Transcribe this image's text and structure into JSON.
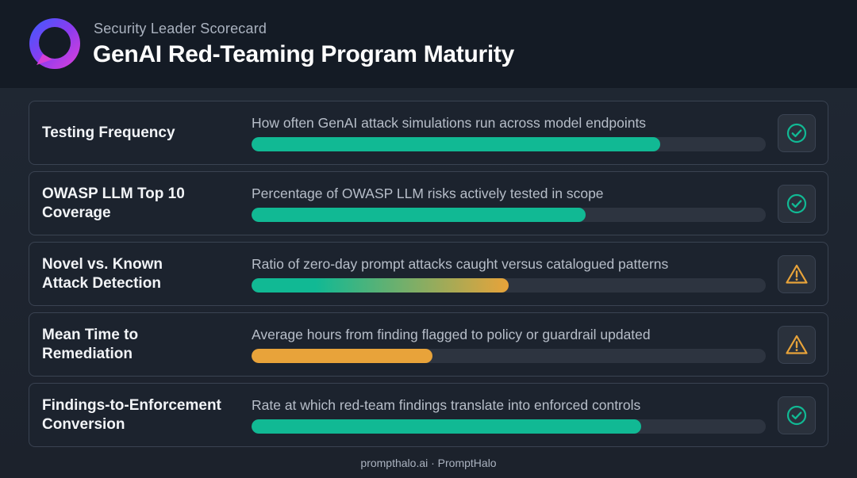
{
  "header": {
    "subtitle": "Security Leader Scorecard",
    "title": "GenAI Red-Teaming Program Maturity",
    "logo_icon": "halo-logo-icon"
  },
  "colors": {
    "teal": "#11b994",
    "amber": "#e8a33a",
    "track": "#2d3440"
  },
  "rows": [
    {
      "label_line1": "Testing Frequency",
      "label_line2": "",
      "description": "How often GenAI attack simulations run across model endpoints",
      "progress": 0.795,
      "bar_style": "teal",
      "status_icon": "check-circle-icon"
    },
    {
      "label_line1": "OWASP LLM Top 10",
      "label_line2": "Coverage",
      "description": "Percentage of OWASP LLM risks actively tested in scope",
      "progress": 0.65,
      "bar_style": "teal",
      "status_icon": "check-circle-icon"
    },
    {
      "label_line1": "Novel vs. Known",
      "label_line2": "Attack Detection",
      "description": "Ratio of zero-day prompt attacks caught versus catalogued patterns",
      "progress": 0.5,
      "bar_style": "teal-to-amber",
      "status_icon": "warning-triangle-icon"
    },
    {
      "label_line1": "Mean Time to",
      "label_line2": "Remediation",
      "description": "Average hours from finding flagged to policy or guardrail updated",
      "progress": 0.352,
      "bar_style": "amber",
      "status_icon": "warning-triangle-icon"
    },
    {
      "label_line1": "Findings-to-Enforcement",
      "label_line2": "Conversion",
      "description": "Rate at which red-team findings translate into enforced controls",
      "progress": 0.758,
      "bar_style": "teal",
      "status_icon": "check-circle-icon"
    }
  ],
  "footer": {
    "text": "prompthalo.ai · PromptHalo"
  }
}
